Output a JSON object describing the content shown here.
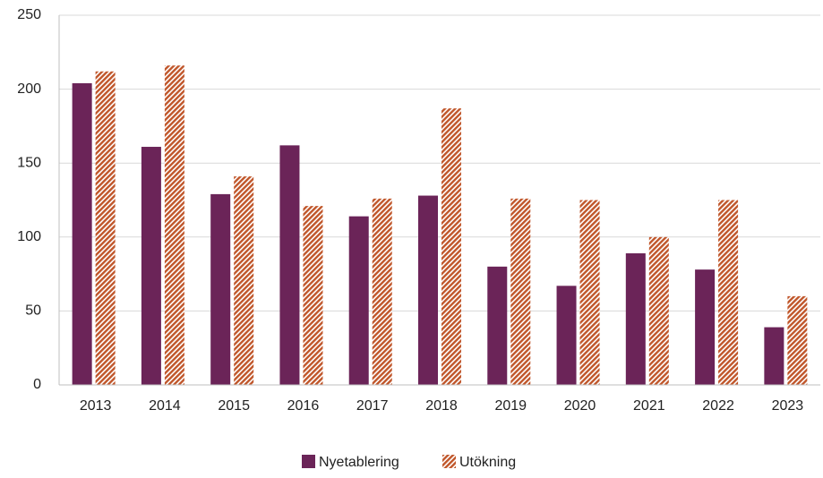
{
  "chart_data": {
    "type": "bar",
    "categories": [
      "2013",
      "2014",
      "2015",
      "2016",
      "2017",
      "2018",
      "2019",
      "2020",
      "2021",
      "2022",
      "2023"
    ],
    "series": [
      {
        "name": "Nyetablering",
        "color": "#6b2458",
        "values": [
          204,
          161,
          129,
          162,
          114,
          128,
          80,
          67,
          89,
          78,
          39
        ]
      },
      {
        "name": "Utökning",
        "color": "#c0562a",
        "pattern": "hatch",
        "values": [
          212,
          216,
          141,
          121,
          126,
          187,
          126,
          125,
          100,
          125,
          60
        ]
      }
    ],
    "ylim": [
      0,
      250
    ],
    "yticks": [
      0,
      50,
      100,
      150,
      200,
      250
    ],
    "grid": true,
    "legend": "bottom"
  }
}
